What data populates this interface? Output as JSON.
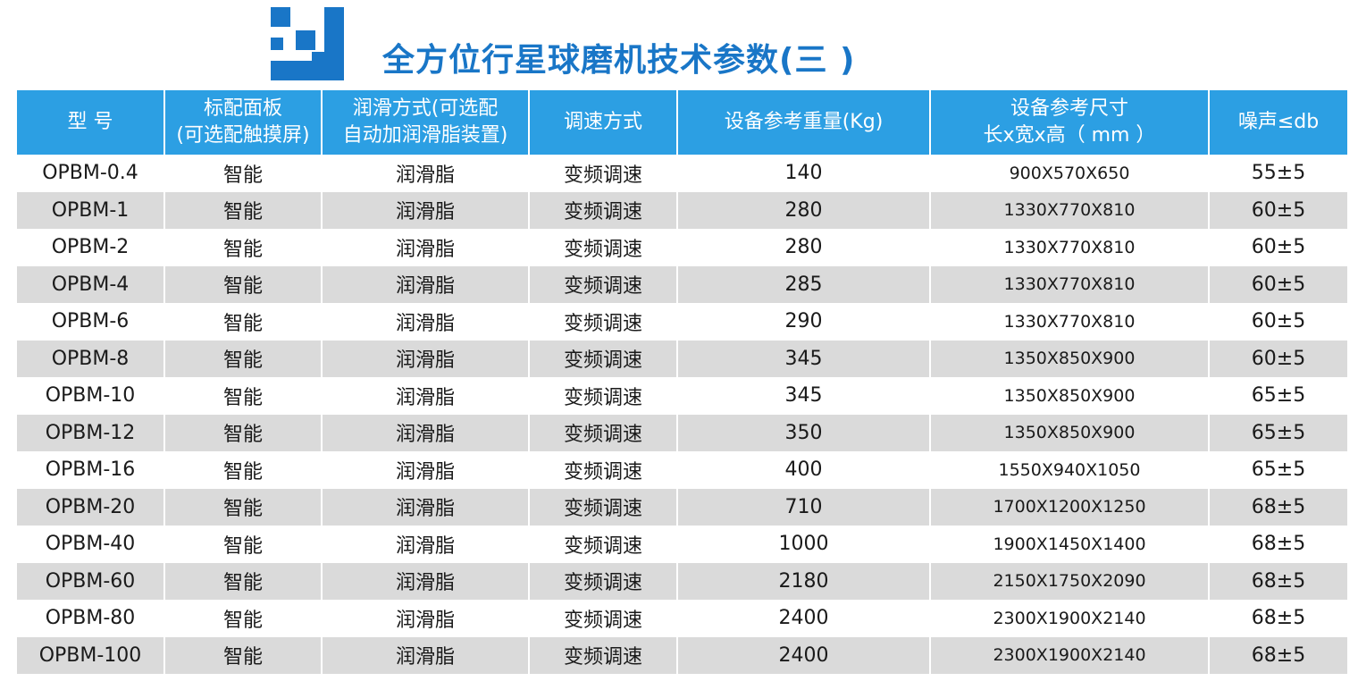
{
  "header": {
    "title": "全方位行星球磨机技术参数(三 )"
  },
  "columns": [
    {
      "line1": "型 号",
      "line2": ""
    },
    {
      "line1": "标配面板",
      "line2": "(可选配触摸屏)"
    },
    {
      "line1": "润滑方式(可选配",
      "line2": "自动加润滑脂装置)"
    },
    {
      "line1": "调速方式",
      "line2": ""
    },
    {
      "line1": "设备参考重量(Kg)",
      "line2": ""
    },
    {
      "line1": "设备参考尺寸",
      "line2": "长x宽x高（ mm ）"
    },
    {
      "line1": "噪声≤db",
      "line2": ""
    }
  ],
  "rows": [
    {
      "model": "OPBM-0.4",
      "panel": "智能",
      "lube": "润滑脂",
      "speed": "变频调速",
      "weight": "140",
      "dims": "900X570X650",
      "noise": "55±5"
    },
    {
      "model": "OPBM-1",
      "panel": "智能",
      "lube": "润滑脂",
      "speed": "变频调速",
      "weight": "280",
      "dims": "1330X770X810",
      "noise": "60±5"
    },
    {
      "model": "OPBM-2",
      "panel": "智能",
      "lube": "润滑脂",
      "speed": "变频调速",
      "weight": "280",
      "dims": "1330X770X810",
      "noise": "60±5"
    },
    {
      "model": "OPBM-4",
      "panel": "智能",
      "lube": "润滑脂",
      "speed": "变频调速",
      "weight": "285",
      "dims": "1330X770X810",
      "noise": "60±5"
    },
    {
      "model": "OPBM-6",
      "panel": "智能",
      "lube": "润滑脂",
      "speed": "变频调速",
      "weight": "290",
      "dims": "1330X770X810",
      "noise": "60±5"
    },
    {
      "model": "OPBM-8",
      "panel": "智能",
      "lube": "润滑脂",
      "speed": "变频调速",
      "weight": "345",
      "dims": "1350X850X900",
      "noise": "60±5"
    },
    {
      "model": "OPBM-10",
      "panel": "智能",
      "lube": "润滑脂",
      "speed": "变频调速",
      "weight": "345",
      "dims": "1350X850X900",
      "noise": "65±5"
    },
    {
      "model": "OPBM-12",
      "panel": "智能",
      "lube": "润滑脂",
      "speed": "变频调速",
      "weight": "350",
      "dims": "1350X850X900",
      "noise": "65±5"
    },
    {
      "model": "OPBM-16",
      "panel": "智能",
      "lube": "润滑脂",
      "speed": "变频调速",
      "weight": "400",
      "dims": "1550X940X1050",
      "noise": "65±5"
    },
    {
      "model": "OPBM-20",
      "panel": "智能",
      "lube": "润滑脂",
      "speed": "变频调速",
      "weight": "710",
      "dims": "1700X1200X1250",
      "noise": "68±5"
    },
    {
      "model": "OPBM-40",
      "panel": "智能",
      "lube": "润滑脂",
      "speed": "变频调速",
      "weight": "1000",
      "dims": "1900X1450X1400",
      "noise": "68±5"
    },
    {
      "model": "OPBM-60",
      "panel": "智能",
      "lube": "润滑脂",
      "speed": "变频调速",
      "weight": "2180",
      "dims": "2150X1750X2090",
      "noise": "68±5"
    },
    {
      "model": "OPBM-80",
      "panel": "智能",
      "lube": "润滑脂",
      "speed": "变频调速",
      "weight": "2400",
      "dims": "2300X1900X2140",
      "noise": "68±5"
    },
    {
      "model": "OPBM-100",
      "panel": "智能",
      "lube": "润滑脂",
      "speed": "变频调速",
      "weight": "2400",
      "dims": "2300X1900X2140",
      "noise": "68±5"
    }
  ],
  "colors": {
    "accent": "#1976c7",
    "header_bg": "#2c9fe3",
    "stripe": "#dadada"
  }
}
